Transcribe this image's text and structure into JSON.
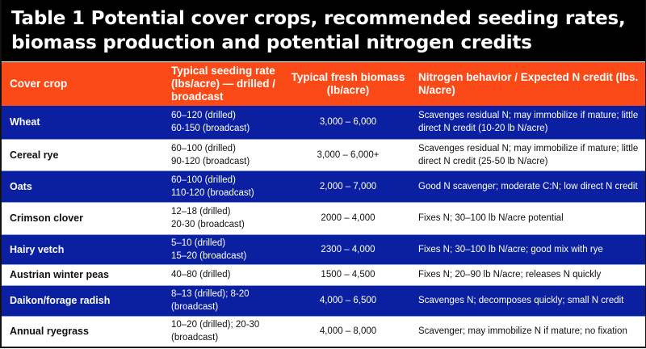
{
  "title": {
    "line1": "Table 1 Potential cover crops, recommended seeding rates,",
    "line2": "biomass production and potential nitrogen credits"
  },
  "colors": {
    "title_bg": "#000000",
    "header_bg": "#fb4a17",
    "row_blue": "#0a20a0",
    "row_white": "#ffffff"
  },
  "headers": {
    "crop": "Cover crop",
    "seeding": "Typical seeding rate (lbs/acre) — drilled / broadcast",
    "biomass": "Typical fresh biomass (lb/acre)",
    "nitrogen": "Nitrogen behavior / Expected N credit (lbs. N/acre)"
  },
  "rows": [
    {
      "crop": "Wheat",
      "seeding_1": "60–120 (drilled)",
      "seeding_2": "60-150 (broadcast)",
      "biomass": "3,000 – 6,000",
      "nitrogen": "Scavenges residual N; may immobilize if mature; little direct N credit (10-20 lb N/acre)"
    },
    {
      "crop": "Cereal rye",
      "seeding_1": "60–100 (drilled)",
      "seeding_2": "90-120 (broadcast)",
      "biomass": "3,000 – 6,000+",
      "nitrogen": "Scavenges residual N; may immobilize if mature; little direct N credit (25-50 lb N/acre)"
    },
    {
      "crop": "Oats",
      "seeding_1": "60–100 (drilled)",
      "seeding_2": "110-120 (broadcast)",
      "biomass": "2,000 – 7,000",
      "nitrogen": "Good N scavenger; moderate C:N; low direct N credit"
    },
    {
      "crop": "Crimson clover",
      "seeding_1": "12–18 (drilled)",
      "seeding_2": "20-30 (broadcast)",
      "biomass": "2000 – 4,000",
      "nitrogen": "Fixes N; 30–100 lb N/acre potential"
    },
    {
      "crop": "Hairy vetch",
      "seeding_1": "5–10 (drilled)",
      "seeding_2": "15–20 (broadcast)",
      "biomass": "2300 – 4,000",
      "nitrogen": "Fixes N; 30–100 lb N/acre; good mix with rye"
    },
    {
      "crop": "Austrian winter peas",
      "seeding_1": "40–80 (drilled)",
      "seeding_2": "",
      "biomass": "1500 – 4,500",
      "nitrogen": "Fixes N; 20–90 lb N/acre; releases N quickly"
    },
    {
      "crop": "Daikon/forage radish",
      "seeding_1": "8–13 (drilled); 8-20 (broadcast)",
      "seeding_2": "",
      "biomass": "4,000 – 6,500",
      "nitrogen": "Scavenges N; decomposes quickly; small N credit"
    },
    {
      "crop": "Annual ryegrass",
      "seeding_1": "10–20 (drilled); 20-30 (broadcast)",
      "seeding_2": "",
      "biomass": "4,000 – 8,000",
      "nitrogen": "Scavenger; may immobilize N if mature; no fixation"
    }
  ]
}
